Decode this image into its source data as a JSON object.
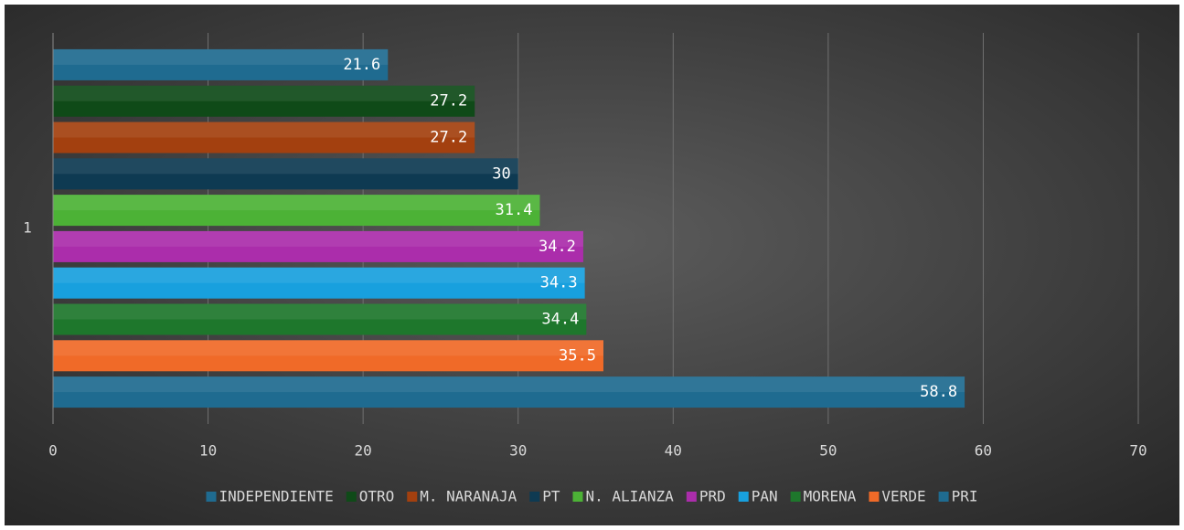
{
  "chart_data": {
    "type": "barh",
    "categories": [
      "1"
    ],
    "series": [
      {
        "name": "INDEPENDIENTE",
        "color": "#1f6b90",
        "values": [
          21.6
        ]
      },
      {
        "name": "OTRO",
        "color": "#0f4a18",
        "values": [
          27.2
        ]
      },
      {
        "name": "M. NARANAJA",
        "color": "#a3400f",
        "values": [
          27.2
        ]
      },
      {
        "name": "PT",
        "color": "#0e3a52",
        "values": [
          30
        ]
      },
      {
        "name": "N. ALIANZA",
        "color": "#4cb236",
        "values": [
          31.4
        ]
      },
      {
        "name": "PRD",
        "color": "#ab2dab",
        "values": [
          34.2
        ]
      },
      {
        "name": "PAN",
        "color": "#18a0de",
        "values": [
          34.3
        ]
      },
      {
        "name": "MORENA",
        "color": "#1e772c",
        "values": [
          34.4
        ]
      },
      {
        "name": "VERDE",
        "color": "#f06a28",
        "values": [
          35.5
        ]
      },
      {
        "name": "PRI",
        "color": "#1f6b90",
        "values": [
          58.8
        ]
      }
    ],
    "xlim": [
      0,
      70
    ],
    "xticks": [
      0,
      10,
      20,
      30,
      40,
      50,
      60,
      70
    ],
    "grid": true,
    "legend": "bottom"
  }
}
